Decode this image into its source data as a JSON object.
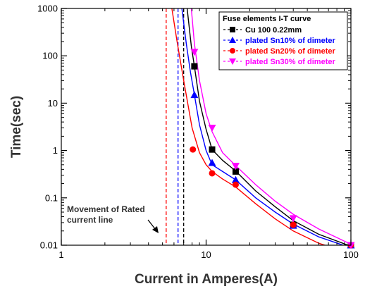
{
  "chart_data": {
    "type": "scatter",
    "xlabel": "Current in Amperes(A)",
    "ylabel": "Time(sec)",
    "xscale": "log",
    "yscale": "log",
    "xlim": [
      1,
      100
    ],
    "ylim": [
      0.01,
      1000
    ],
    "x_ticks": [
      {
        "value": 1,
        "label": "1"
      },
      {
        "value": 10,
        "label": "10"
      },
      {
        "value": 100,
        "label": "100"
      }
    ],
    "y_ticks": [
      {
        "value": 0.01,
        "label": "0.01"
      },
      {
        "value": 0.1,
        "label": "0.1"
      },
      {
        "value": 1,
        "label": "1"
      },
      {
        "value": 10,
        "label": "10"
      },
      {
        "value": 100,
        "label": "100"
      },
      {
        "value": 1000,
        "label": "1000"
      }
    ],
    "legend": {
      "title": "Fuse elements I-T curve",
      "position": "top-right"
    },
    "series": [
      {
        "name": "Cu 100 0.22mm",
        "color": "#000000",
        "marker": "square",
        "x": [
          8.3,
          11,
          16,
          40,
          100
        ],
        "y": [
          60,
          1.05,
          0.36,
          0.027,
          0.01
        ],
        "fit_x": [
          7.4,
          7.9,
          8.3,
          9,
          10,
          11,
          13,
          16,
          22,
          30,
          40,
          60,
          100
        ],
        "fit_y": [
          1000,
          160,
          60,
          11,
          2.8,
          1.05,
          0.62,
          0.37,
          0.14,
          0.065,
          0.033,
          0.017,
          0.0095
        ],
        "rated_current": 7.0
      },
      {
        "name": "plated Sn10% of dimeter",
        "color": "#0000ff",
        "marker": "triangle-up",
        "x": [
          8.3,
          11,
          16,
          40,
          100
        ],
        "y": [
          15,
          0.55,
          0.24,
          0.026,
          0.01
        ],
        "fit_x": [
          6.8,
          7.3,
          7.8,
          8.3,
          9,
          10,
          11,
          13,
          16,
          22,
          30,
          40,
          60,
          100
        ],
        "fit_y": [
          1000,
          180,
          45,
          15,
          3.5,
          1.0,
          0.5,
          0.36,
          0.24,
          0.1,
          0.05,
          0.028,
          0.015,
          0.0088
        ],
        "rated_current": 6.4
      },
      {
        "name": "plated Sn20% of dimeter",
        "color": "#ff0000",
        "marker": "circle",
        "x": [
          8.1,
          11,
          16,
          40,
          100
        ],
        "y": [
          1.05,
          0.33,
          0.19,
          0.027,
          0.01
        ],
        "fit_x": [
          5.8,
          6.3,
          7,
          8,
          9,
          10,
          11,
          13,
          16,
          22,
          30,
          40,
          60,
          100
        ],
        "fit_y": [
          1000,
          200,
          30,
          3,
          0.9,
          0.5,
          0.36,
          0.25,
          0.17,
          0.075,
          0.036,
          0.02,
          0.011,
          0.0066
        ],
        "rated_current": 5.3
      },
      {
        "name": "plated Sn30% of dimeter",
        "color": "#ff00ff",
        "marker": "triangle-down",
        "x": [
          8.3,
          11,
          16,
          40,
          100
        ],
        "y": [
          120,
          3,
          0.47,
          0.037,
          0.01
        ],
        "fit_x": [
          7.9,
          8.3,
          9,
          10,
          11,
          13,
          16,
          22,
          30,
          40,
          60,
          100
        ],
        "fit_y": [
          1000,
          180,
          30,
          6,
          2.5,
          0.9,
          0.48,
          0.19,
          0.085,
          0.045,
          0.022,
          0.0105
        ]
      }
    ],
    "annotation": {
      "lines": [
        "Movement of Rated",
        "current line"
      ]
    }
  }
}
